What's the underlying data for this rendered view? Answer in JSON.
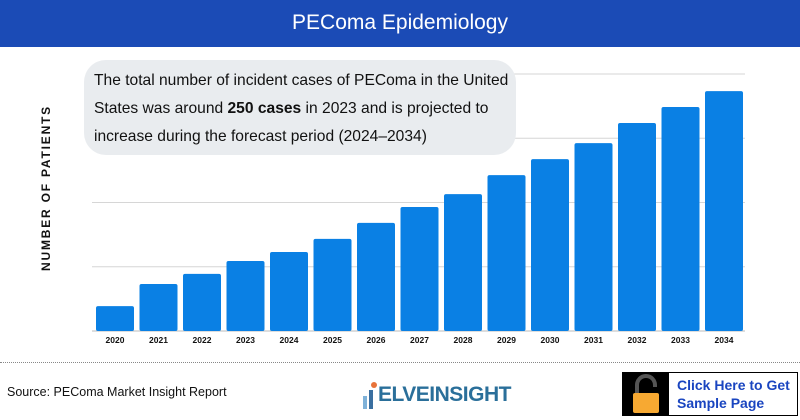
{
  "header": {
    "title": "PEComa Epidemiology"
  },
  "callout": {
    "text_before": "The total number of incident cases of PEComa in the United States was around ",
    "bold": "250 cases",
    "text_after": " in 2023 and is projected to increase during the forecast period (2024–2034)"
  },
  "chart_data": {
    "type": "bar",
    "title": "",
    "xlabel": "",
    "ylabel": "NUMBER OF PATIENTS",
    "categories": [
      "2020",
      "2021",
      "2022",
      "2023",
      "2024",
      "2025",
      "2026",
      "2027",
      "2028",
      "2029",
      "2030",
      "2031",
      "2032",
      "2033",
      "2034"
    ],
    "values": [
      89,
      168,
      204,
      250,
      282,
      329,
      386,
      443,
      489,
      557,
      614,
      671,
      743,
      800,
      857
    ],
    "ylim": [
      0,
      918
    ],
    "y_tick_labels_shown": false,
    "grid": true,
    "bar_color": "#0a80e4"
  },
  "footer": {
    "source": "Source: PEComa Market Insight Report",
    "logo_text": "DELVEINSIGHT",
    "cta_line1": "Click Here to Get",
    "cta_line2": "Sample Page",
    "cta_icon": "unlock-icon",
    "cta_icon_color": "#f7a932"
  }
}
